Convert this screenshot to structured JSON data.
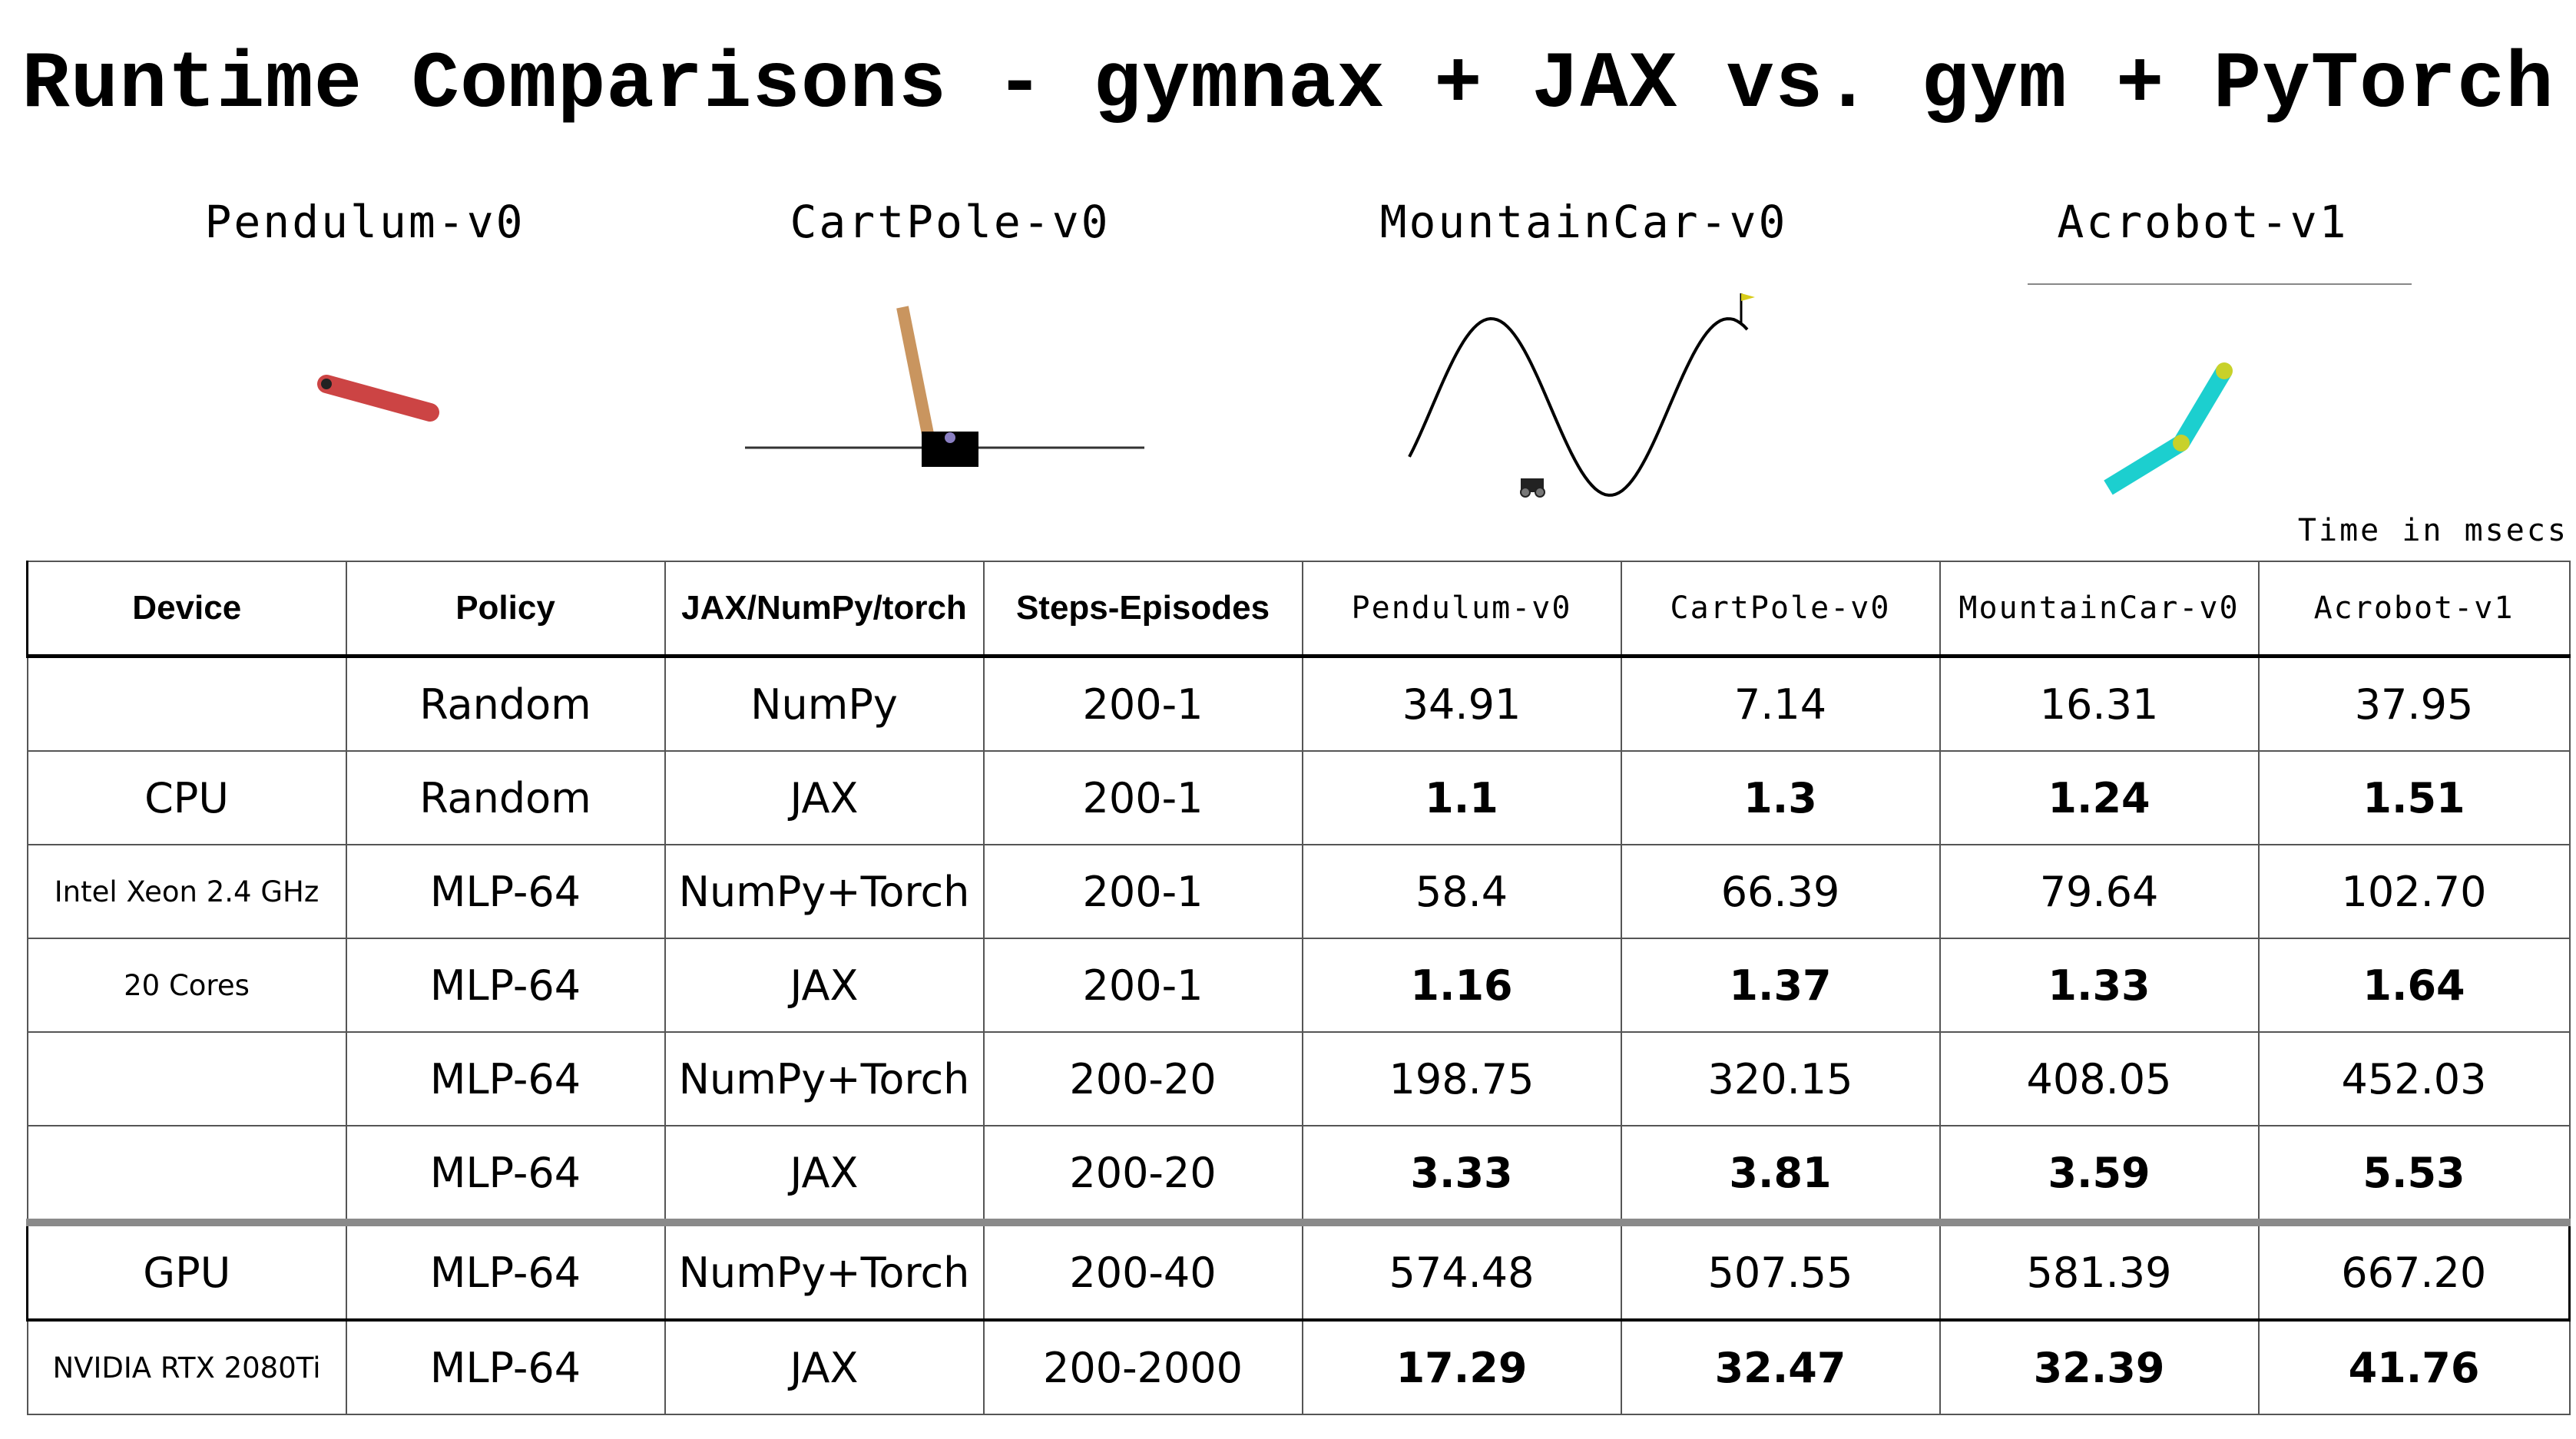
{
  "title": "Runtime Comparisons - gymnax + JAX vs. gym + PyTorch",
  "environments": [
    {
      "name": "Pendulum-v0",
      "icon": "pendulum-icon"
    },
    {
      "name": "CartPole-v0",
      "icon": "cartpole-icon"
    },
    {
      "name": "MountainCar-v0",
      "icon": "mountaincar-icon"
    },
    {
      "name": "Acrobot-v1",
      "icon": "acrobot-icon"
    }
  ],
  "colors": {
    "pendulum": "#cc4444",
    "cartpole_pole": "#c9955f",
    "cartpole_cart": "#000000",
    "acrobot_link": "#1ccfcf",
    "acrobot_joint": "#c8d12a",
    "mountaincar_flag": "#d8cc1a"
  },
  "chart_data": {
    "type": "table",
    "note": "Time in msecs",
    "columns": [
      "Device",
      "Policy",
      "JAX/NumPy/torch",
      "Steps-Episodes",
      "Pendulum-v0",
      "CartPole-v0",
      "MountainCar-v0",
      "Acrobot-v1"
    ],
    "rows": [
      {
        "device": "",
        "policy": "Random",
        "framework": "NumPy",
        "steps": "200-1",
        "values": [
          "34.91",
          "7.14",
          "16.31",
          "37.95"
        ],
        "bold": false
      },
      {
        "device": "CPU",
        "policy": "Random",
        "framework": "JAX",
        "steps": "200-1",
        "values": [
          "1.1",
          "1.3",
          "1.24",
          "1.51"
        ],
        "bold": true
      },
      {
        "device": "Intel Xeon 2.4 GHz",
        "policy": "MLP-64",
        "framework": "NumPy+Torch",
        "steps": "200-1",
        "values": [
          "58.4",
          "66.39",
          "79.64",
          "102.70"
        ],
        "bold": false
      },
      {
        "device": "20 Cores",
        "policy": "MLP-64",
        "framework": "JAX",
        "steps": "200-1",
        "values": [
          "1.16",
          "1.37",
          "1.33",
          "1.64"
        ],
        "bold": true
      },
      {
        "device": "",
        "policy": "MLP-64",
        "framework": "NumPy+Torch",
        "steps": "200-20",
        "values": [
          "198.75",
          "320.15",
          "408.05",
          "452.03"
        ],
        "bold": false
      },
      {
        "device": "",
        "policy": "MLP-64",
        "framework": "JAX",
        "steps": "200-20",
        "values": [
          "3.33",
          "3.81",
          "3.59",
          "5.53"
        ],
        "bold": true
      },
      {
        "device": "GPU",
        "policy": "MLP-64",
        "framework": "NumPy+Torch",
        "steps": "200-40",
        "values": [
          "574.48",
          "507.55",
          "581.39",
          "667.20"
        ],
        "bold": false
      },
      {
        "device": "NVIDIA RTX 2080Ti",
        "policy": "MLP-64",
        "framework": "JAX",
        "steps": "200-2000",
        "values": [
          "17.29",
          "32.47",
          "32.39",
          "41.76"
        ],
        "bold": true
      }
    ]
  }
}
